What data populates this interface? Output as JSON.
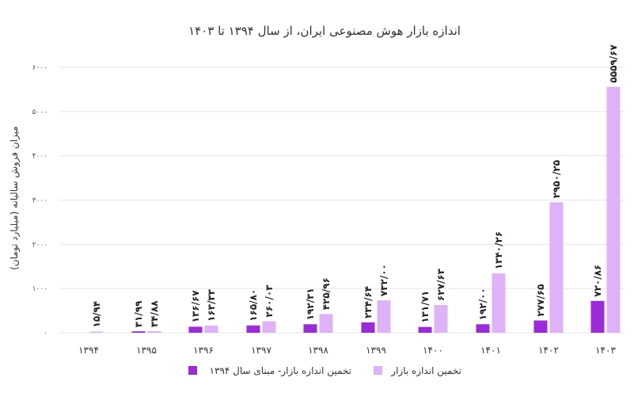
{
  "chart_data": {
    "type": "bar",
    "title": "اندازه بازار هوش مصنوعی ایران، از سال ۱۳۹۴ تا ۱۴۰۳",
    "xlabel": "",
    "ylabel": "میزان فروش سالیانه (میلیارد تومان)",
    "ylim": [
      0,
      6000
    ],
    "yticks": [
      0,
      1000,
      2000,
      3000,
      4000,
      5000,
      6000
    ],
    "ytick_labels": [
      "۰",
      "۱۰۰۰",
      "۲۰۰۰",
      "۳۰۰۰",
      "۴۰۰۰",
      "۵۰۰۰",
      "۶۰۰۰"
    ],
    "grid": true,
    "legend_position": "bottom",
    "categories": [
      "۱۳۹۴",
      "۱۳۹۵",
      "۱۳۹۶",
      "۱۳۹۷",
      "۱۳۹۸",
      "۱۳۹۹",
      "۱۴۰۰",
      "۱۴۰۱",
      "۱۴۰۲",
      "۱۴۰۳"
    ],
    "series": [
      {
        "name": "تخمین اندازه بازار- مبنای سال ۱۳۹۴",
        "color": "#9b2bd6",
        "values": [
          null,
          31.99,
          136.67,
          165.8,
          192.31,
          234.64,
          131.71,
          192.0,
          277.65,
          720.86
        ],
        "labels": [
          "",
          "۳۱/۹۹",
          "۱۳۶/۶۷",
          "۱۶۵/۸۰",
          "۱۹۲/۳۱",
          "۲۳۴/۶۴",
          "۱۳۱/۷۱",
          "۱۹۲/۰۰",
          "۲۷۷/۶۵",
          "۷۲۰/۸۶"
        ]
      },
      {
        "name": "تخمین اندازه بازار",
        "color": "#dfb2f7",
        "values": [
          15.94,
          34.88,
          163.33,
          260.03,
          425.96,
          732.0,
          627.63,
          1340.26,
          2950.25,
          5559.67
        ],
        "labels": [
          "۱۵/۹۴",
          "۳۴/۸۸",
          "۱۶۳/۳۳",
          "۲۶۰/۰۳",
          "۴۲۵/۹۶",
          "۷۳۲/۰۰",
          "۶۲۷/۶۳",
          "۱۳۴۰/۲۶",
          "۲۹۵۰/۲۵",
          "۵۵۵۹/۶۷"
        ]
      }
    ]
  }
}
